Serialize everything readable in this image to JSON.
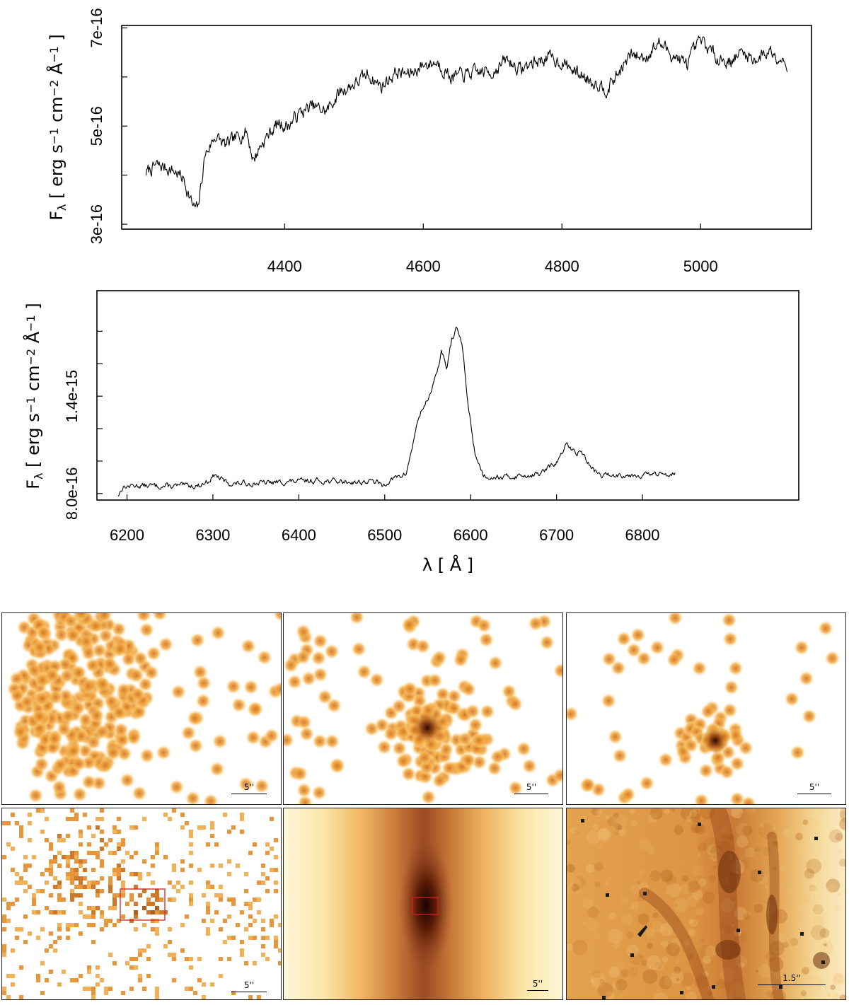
{
  "chart_data": [
    {
      "type": "line",
      "name": "blue-spectrum",
      "ylabel": "F_λ [ erg s^-1 cm^-2 Å^-1 ]",
      "xlabel": "",
      "xlim": [
        4165,
        5160
      ],
      "ylim": [
        2.9e-16,
        7.05e-16
      ],
      "x_ticks": [
        4400,
        4600,
        4800,
        5000
      ],
      "x_tick_labels": [
        "4400",
        "4600",
        "4800",
        "5000"
      ],
      "y_ticks": [
        3e-16,
        4e-16,
        5e-16,
        6e-16,
        7e-16
      ],
      "y_tick_labels": [
        "3e-16",
        "",
        "5e-16",
        "",
        "7e-16"
      ],
      "series": [
        {
          "name": "flux",
          "x": [
            4200,
            4215,
            4230,
            4245,
            4255,
            4262,
            4268,
            4275,
            4285,
            4300,
            4315,
            4330,
            4345,
            4355,
            4365,
            4375,
            4390,
            4405,
            4420,
            4440,
            4460,
            4480,
            4500,
            4520,
            4540,
            4560,
            4580,
            4600,
            4620,
            4640,
            4660,
            4680,
            4700,
            4720,
            4740,
            4760,
            4780,
            4800,
            4820,
            4840,
            4855,
            4865,
            4880,
            4900,
            4920,
            4940,
            4960,
            4980,
            5000,
            5020,
            5040,
            5060,
            5080,
            5100,
            5125
          ],
          "values": [
            4.05e-16,
            4.2e-16,
            4.15e-16,
            4.05e-16,
            3.9e-16,
            3.6e-16,
            3.35e-16,
            3.3e-16,
            4.4e-16,
            4.8e-16,
            4.6e-16,
            4.75e-16,
            4.9e-16,
            4.3e-16,
            4.6e-16,
            4.8e-16,
            5.05e-16,
            5e-16,
            5.25e-16,
            5.4e-16,
            5.3e-16,
            5.7e-16,
            5.85e-16,
            6.05e-16,
            5.8e-16,
            6.1e-16,
            6.05e-16,
            6.25e-16,
            6.3e-16,
            6e-16,
            6.05e-16,
            6.1e-16,
            6.1e-16,
            6.35e-16,
            6.15e-16,
            6.3e-16,
            6.4e-16,
            6.3e-16,
            6.1e-16,
            5.95e-16,
            5.85e-16,
            5.75e-16,
            6.05e-16,
            6.45e-16,
            6.4e-16,
            6.7e-16,
            6.45e-16,
            6.25e-16,
            6.75e-16,
            6.45e-16,
            6.3e-16,
            6.5e-16,
            6.35e-16,
            6.55e-16,
            6.3e-16
          ]
        }
      ]
    },
    {
      "type": "line",
      "name": "red-spectrum",
      "ylabel": "F_λ [ erg s^-1 cm^-2 Å^-1 ]",
      "xlabel": "λ [ Å ]",
      "xlim": [
        6165,
        6982
      ],
      "ylim": [
        7.6e-16,
        2.05e-15
      ],
      "x_ticks": [
        6200,
        6300,
        6400,
        6500,
        6600,
        6700,
        6800
      ],
      "x_tick_labels": [
        "6200",
        "6300",
        "6400",
        "6500",
        "6600",
        "6700",
        "6800"
      ],
      "y_ticks": [
        8e-16,
        1e-15,
        1.2e-15,
        1.4e-15,
        1.6e-15,
        1.8e-15
      ],
      "y_tick_labels": [
        "8.0e-16",
        "",
        "",
        "1.4e-15",
        "",
        ""
      ],
      "series": [
        {
          "name": "flux",
          "x": [
            6190,
            6195,
            6210,
            6250,
            6285,
            6295,
            6302,
            6312,
            6320,
            6360,
            6420,
            6470,
            6490,
            6497,
            6505,
            6525,
            6540,
            6550,
            6560,
            6566,
            6572,
            6578,
            6584,
            6590,
            6597,
            6605,
            6615,
            6640,
            6680,
            6700,
            6712,
            6720,
            6730,
            6740,
            6752,
            6762,
            6800,
            6830,
            6838
          ],
          "values": [
            7.9e-16,
            8.4e-16,
            8.5e-16,
            8.45e-16,
            8.5e-16,
            8.8e-16,
            9.15e-16,
            8.8e-16,
            8.6e-16,
            8.65e-16,
            8.8e-16,
            8.7e-16,
            8.75e-16,
            8.45e-16,
            8.8e-16,
            9.2e-16,
            1.28e-15,
            1.38e-15,
            1.52e-15,
            1.68e-15,
            1.57e-15,
            1.75e-15,
            1.82e-15,
            1.72e-15,
            1.35e-15,
            1.05e-15,
            9.1e-16,
            9e-16,
            9.2e-16,
            9.9e-16,
            1.1e-15,
            1.06e-15,
            1.05e-15,
            9.6e-16,
            9.1e-16,
            9.15e-16,
            9.15e-16,
            9.2e-16,
            9.35e-16
          ]
        }
      ]
    }
  ],
  "image_panels": [
    {
      "name": "panel-top-1",
      "scale_label": "5''"
    },
    {
      "name": "panel-top-2",
      "scale_label": "5''"
    },
    {
      "name": "panel-top-3",
      "scale_label": "5''"
    },
    {
      "name": "panel-bottom-1",
      "scale_label": "5''"
    },
    {
      "name": "panel-bottom-2",
      "scale_label": "5''"
    },
    {
      "name": "panel-bottom-3",
      "scale_label": "1.5''"
    }
  ],
  "colors": {
    "line": "#000000",
    "frame": "#000000",
    "box": "#cc2222",
    "blob_dark": "#8c3e0e",
    "blob_mid": "#d07624",
    "blob_light": "#f2a841",
    "bg_light": "#fbe3a6"
  }
}
